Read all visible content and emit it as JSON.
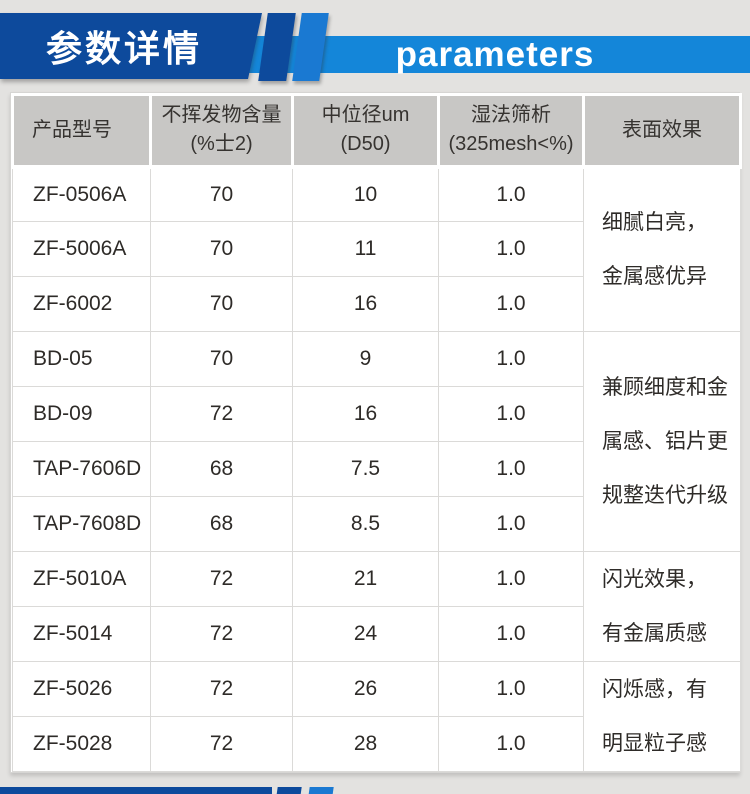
{
  "banner": {
    "title_cn": "参数详情",
    "title_en": "parameters"
  },
  "colors": {
    "navy": "#0d4a9c",
    "bright_blue": "#1a79d2",
    "light_blue": "#1486d9",
    "header_gray": "#c8c7c5",
    "page_bg": "#e3e2e0"
  },
  "table": {
    "headers": [
      {
        "line1": "产品型号",
        "line2": ""
      },
      {
        "line1": "不挥发物含量",
        "line2": "(%士2)"
      },
      {
        "line1": "中位径um",
        "line2": "(D50)"
      },
      {
        "line1": "湿法筛析",
        "line2": "(325mesh<%)"
      },
      {
        "line1": "表面效果",
        "line2": ""
      }
    ],
    "rows": [
      {
        "model": "ZF-0506A",
        "nonvolatile": "70",
        "d50": "10",
        "wet_sieve": "1.0"
      },
      {
        "model": "ZF-5006A",
        "nonvolatile": "70",
        "d50": "11",
        "wet_sieve": "1.0"
      },
      {
        "model": "ZF-6002",
        "nonvolatile": "70",
        "d50": "16",
        "wet_sieve": "1.0"
      },
      {
        "model": "BD-05",
        "nonvolatile": "70",
        "d50": "9",
        "wet_sieve": "1.0"
      },
      {
        "model": "BD-09",
        "nonvolatile": "72",
        "d50": "16",
        "wet_sieve": "1.0"
      },
      {
        "model": "TAP-7606D",
        "nonvolatile": "68",
        "d50": "7.5",
        "wet_sieve": "1.0"
      },
      {
        "model": "TAP-7608D",
        "nonvolatile": "68",
        "d50": "8.5",
        "wet_sieve": "1.0"
      },
      {
        "model": "ZF-5010A",
        "nonvolatile": "72",
        "d50": "21",
        "wet_sieve": "1.0"
      },
      {
        "model": "ZF-5014",
        "nonvolatile": "72",
        "d50": "24",
        "wet_sieve": "1.0"
      },
      {
        "model": "ZF-5026",
        "nonvolatile": "72",
        "d50": "26",
        "wet_sieve": "1.0"
      },
      {
        "model": "ZF-5028",
        "nonvolatile": "72",
        "d50": "28",
        "wet_sieve": "1.0"
      }
    ],
    "effects": [
      {
        "rowspan": 3,
        "lines": [
          "细腻白亮，",
          "金属感优异"
        ]
      },
      {
        "rowspan": 4,
        "lines": [
          "兼顾细度和金",
          "属感、铝片更",
          "规整迭代升级"
        ]
      },
      {
        "rowspan": 2,
        "lines": [
          "闪光效果，",
          "有金属质感"
        ]
      },
      {
        "rowspan": 2,
        "lines": [
          "闪烁感，有",
          "明显粒子感"
        ]
      }
    ]
  }
}
